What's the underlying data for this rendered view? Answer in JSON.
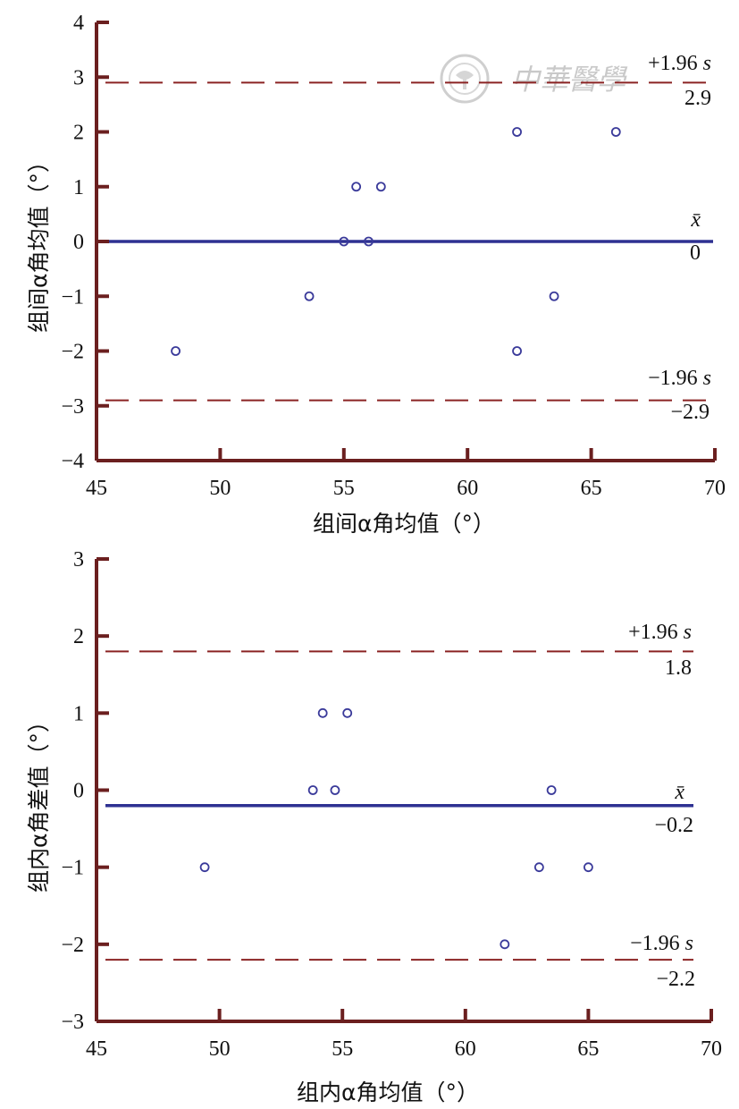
{
  "colors": {
    "axis": "#6b1f1f",
    "mean_line": "#2e3192",
    "limit_line": "#8b2323",
    "points": "#3a3a9a",
    "watermark": "#c9c9c9"
  },
  "watermark": {
    "text": "中華醫學",
    "icon": "seal-icon"
  },
  "chart_data": [
    {
      "type": "scatter",
      "title": "",
      "xlabel": "组间α角均值（°）",
      "ylabel": "组间α角均值（°）",
      "xlim": [
        45,
        70
      ],
      "ylim": [
        -4,
        4
      ],
      "xticks": [
        "45",
        "50",
        "55",
        "60",
        "65",
        "70"
      ],
      "yticks": [
        "4",
        "3",
        "2",
        "1",
        "0",
        "−1",
        "−2",
        "−3",
        "−4"
      ],
      "points": [
        {
          "x": 48.2,
          "y": -2
        },
        {
          "x": 53.6,
          "y": -1
        },
        {
          "x": 55.0,
          "y": 0
        },
        {
          "x": 55.5,
          "y": 1
        },
        {
          "x": 56.0,
          "y": 0
        },
        {
          "x": 56.5,
          "y": 1
        },
        {
          "x": 62.0,
          "y": 2
        },
        {
          "x": 62.0,
          "y": -2
        },
        {
          "x": 63.5,
          "y": -1
        },
        {
          "x": 66.0,
          "y": 2
        }
      ],
      "mean": {
        "value": 0,
        "symbol": "x̄",
        "label": "0"
      },
      "upper_limit": {
        "value": 2.9,
        "symbol": "+1.96 ",
        "symbol_s": "s",
        "label": "2.9"
      },
      "lower_limit": {
        "value": -2.9,
        "symbol": "−1.96 ",
        "symbol_s": "s",
        "label": "−2.9"
      }
    },
    {
      "type": "scatter",
      "title": "",
      "xlabel": "组内α角均值（°）",
      "ylabel": "组内α角差值（°）",
      "xlim": [
        45,
        70
      ],
      "ylim": [
        -3,
        3
      ],
      "xticks": [
        "45",
        "50",
        "55",
        "60",
        "65",
        "70"
      ],
      "yticks": [
        "3",
        "2",
        "1",
        "0",
        "−1",
        "−2",
        "−3"
      ],
      "points": [
        {
          "x": 49.4,
          "y": -1
        },
        {
          "x": 53.8,
          "y": 0
        },
        {
          "x": 54.2,
          "y": 1
        },
        {
          "x": 54.7,
          "y": 0
        },
        {
          "x": 55.2,
          "y": 1
        },
        {
          "x": 61.6,
          "y": -2
        },
        {
          "x": 63.0,
          "y": -1
        },
        {
          "x": 63.5,
          "y": 0
        },
        {
          "x": 65.0,
          "y": -1
        }
      ],
      "mean": {
        "value": -0.2,
        "symbol": "x̄",
        "label": "−0.2"
      },
      "upper_limit": {
        "value": 1.8,
        "symbol": "+1.96 ",
        "symbol_s": "s",
        "label": "1.8"
      },
      "lower_limit": {
        "value": -2.2,
        "symbol": "−1.96 ",
        "symbol_s": "s",
        "label": "−2.2"
      }
    }
  ]
}
